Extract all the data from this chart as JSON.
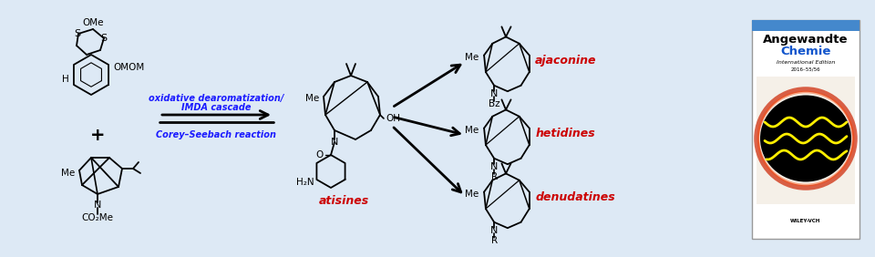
{
  "background_color": "#dde9f5",
  "fig_width": 9.6,
  "fig_height": 2.82,
  "dpi": 100,
  "reaction_arrow_text1": "oxidative dearomatization/",
  "reaction_arrow_text2": "IMDA cascade",
  "reaction_arrow_text3": "Corey–Seebach reaction",
  "product_labels": [
    "ajaconine",
    "hetidines",
    "denudatines"
  ],
  "product_label_color": "#cc0000",
  "intermediate_label": "atisines",
  "intermediate_label_color": "#cc0000",
  "reaction_text_color": "#1a1aff",
  "journal_title1": "Angewandte",
  "journal_title2": "Chemie",
  "journal_subtitle": "International Edition",
  "journal_date": "2016–55/56",
  "cover_bg": "#ffffff",
  "cover_border": "#cccccc"
}
